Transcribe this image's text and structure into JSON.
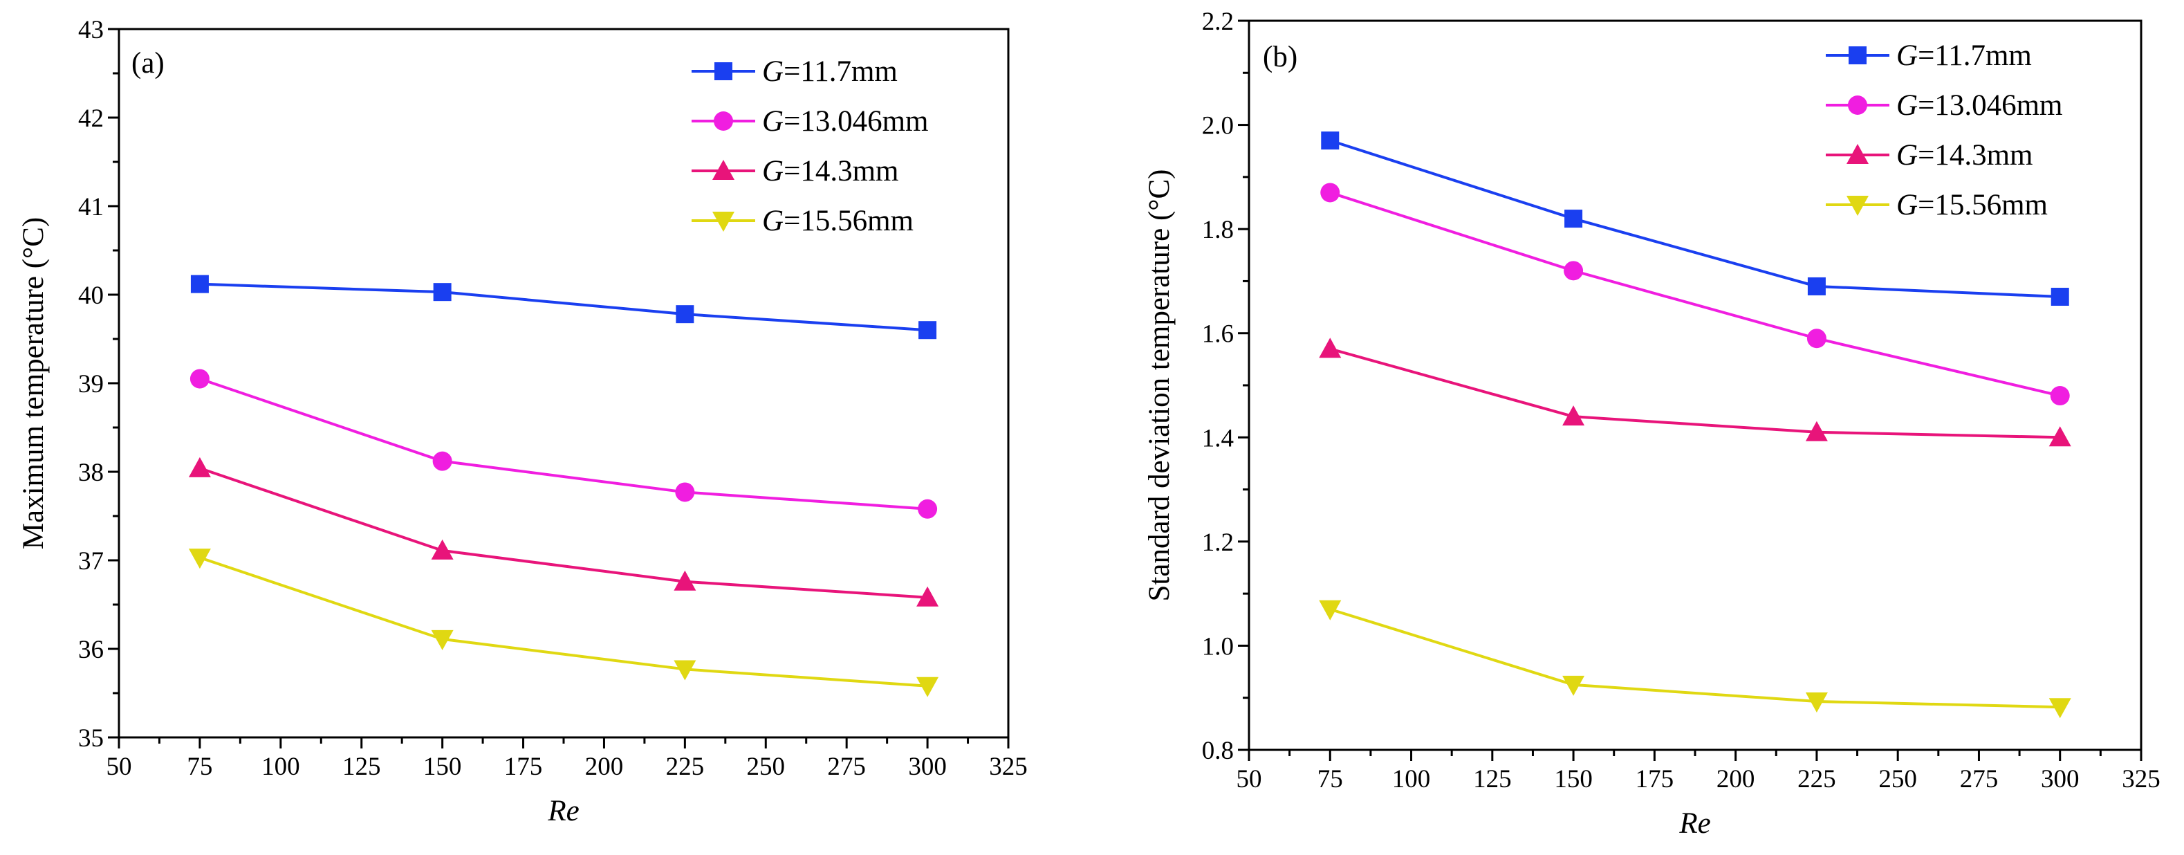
{
  "chart_data": [
    {
      "type": "line",
      "panel_label": "(a)",
      "xlabel": "Re",
      "ylabel": "Maximum temperature (°C)",
      "xlim": [
        50,
        325
      ],
      "ylim": [
        35,
        43
      ],
      "xticks": [
        "50",
        "75",
        "100",
        "125",
        "150",
        "175",
        "200",
        "225",
        "250",
        "275",
        "300",
        "325"
      ],
      "yticks": [
        "35",
        "36",
        "37",
        "38",
        "39",
        "40",
        "41",
        "42",
        "43"
      ],
      "x": [
        75,
        150,
        225,
        300
      ],
      "legend_position": "top-right",
      "series": [
        {
          "name": "G=11.7mm",
          "symbol": "G",
          "label_suffix": "=11.7mm",
          "marker": "square",
          "color": "#1a3ff0",
          "values": [
            40.12,
            40.03,
            39.78,
            39.6
          ]
        },
        {
          "name": "G=13.046mm",
          "symbol": "G",
          "label_suffix": "=13.046mm",
          "marker": "circle",
          "color": "#f01ee0",
          "values": [
            39.05,
            38.12,
            37.77,
            37.58
          ]
        },
        {
          "name": "G=14.3mm",
          "symbol": "G",
          "label_suffix": "=14.3mm",
          "marker": "triangle-up",
          "color": "#e8147a",
          "values": [
            38.04,
            37.11,
            36.76,
            36.58
          ]
        },
        {
          "name": "G=15.56mm",
          "symbol": "G",
          "label_suffix": "=15.56mm",
          "marker": "triangle-down",
          "color": "#e0d812",
          "values": [
            37.03,
            36.11,
            35.77,
            35.58
          ]
        }
      ]
    },
    {
      "type": "line",
      "panel_label": "(b)",
      "xlabel": "Re",
      "ylabel": "Standard deviation temperature (°C)",
      "xlim": [
        50,
        325
      ],
      "ylim": [
        0.8,
        2.2
      ],
      "xticks": [
        "50",
        "75",
        "100",
        "125",
        "150",
        "175",
        "200",
        "225",
        "250",
        "275",
        "300",
        "325"
      ],
      "yticks": [
        "0.8",
        "1.0",
        "1.2",
        "1.4",
        "1.6",
        "1.8",
        "2.0",
        "2.2"
      ],
      "x": [
        75,
        150,
        225,
        300
      ],
      "legend_position": "top-right",
      "series": [
        {
          "name": "G=11.7mm",
          "symbol": "G",
          "label_suffix": "=11.7mm",
          "marker": "square",
          "color": "#1a3ff0",
          "values": [
            1.97,
            1.82,
            1.69,
            1.67
          ]
        },
        {
          "name": "G=13.046mm",
          "symbol": "G",
          "label_suffix": "=13.046mm",
          "marker": "circle",
          "color": "#f01ee0",
          "values": [
            1.87,
            1.72,
            1.59,
            1.48
          ]
        },
        {
          "name": "G=14.3mm",
          "symbol": "G",
          "label_suffix": "=14.3mm",
          "marker": "triangle-up",
          "color": "#e8147a",
          "values": [
            1.57,
            1.44,
            1.41,
            1.4
          ]
        },
        {
          "name": "G=15.56mm",
          "symbol": "G",
          "label_suffix": "=15.56mm",
          "marker": "triangle-down",
          "color": "#e0d812",
          "values": [
            1.07,
            0.925,
            0.893,
            0.882
          ]
        }
      ]
    }
  ]
}
